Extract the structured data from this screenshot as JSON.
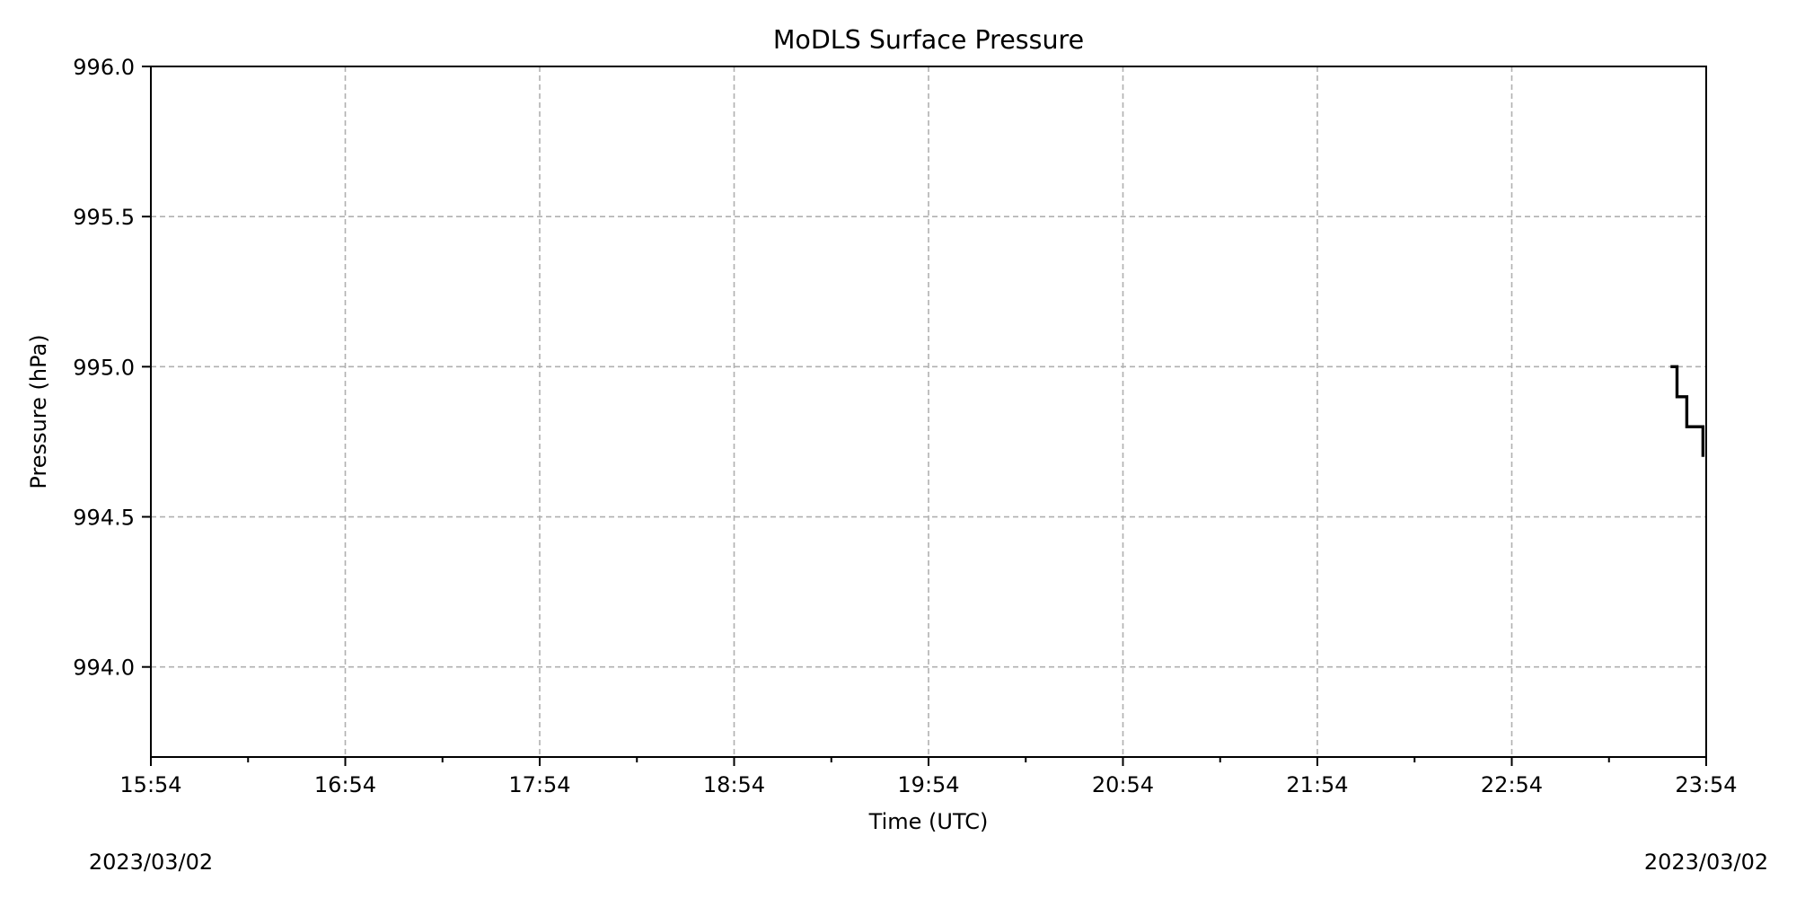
{
  "chart_data": {
    "type": "line",
    "title": "MoDLS Surface Pressure",
    "xlabel": "Time (UTC)",
    "ylabel": "Pressure (hPa)",
    "x_tick_labels": [
      "15:54",
      "16:54",
      "17:54",
      "18:54",
      "19:54",
      "20:54",
      "21:54",
      "22:54",
      "23:54"
    ],
    "y_tick_labels": [
      "994.0",
      "994.5",
      "995.0",
      "995.5",
      "996.0"
    ],
    "y_ticks": [
      994.0,
      994.5,
      995.0,
      995.5,
      996.0
    ],
    "ylim": [
      993.7,
      996.0
    ],
    "xlim": [
      "2023/03/02 15:54",
      "2023/03/02 23:54"
    ],
    "date_left": "2023/03/02",
    "date_right": "2023/03/02",
    "grid": true,
    "series": [
      {
        "x": [
          "2023/03/02 23:43",
          "2023/03/02 23:45",
          "2023/03/02 23:45",
          "2023/03/02 23:48",
          "2023/03/02 23:48",
          "2023/03/02 23:53",
          "2023/03/02 23:53"
        ],
        "values": [
          995.0,
          995.0,
          994.9,
          994.9,
          994.8,
          994.8,
          994.7
        ],
        "color": "#000000"
      }
    ]
  }
}
